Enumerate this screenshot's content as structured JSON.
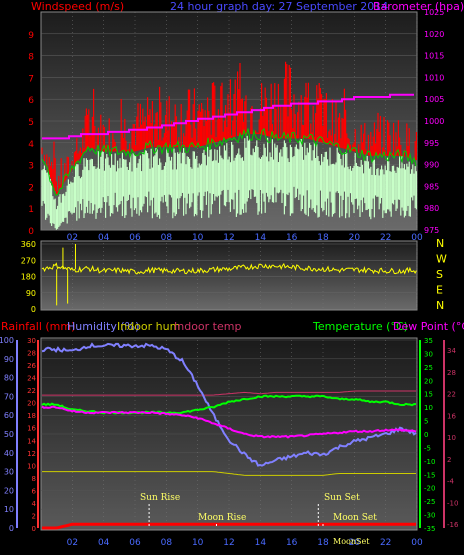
{
  "header": {
    "left_label": "Windspeed (m/s)",
    "center_label": "24 hour graph day:  27 September 2014",
    "right_label": "Barometer (hpa)"
  },
  "wind_panel": {
    "left_ticks": [
      "0",
      "1",
      "2",
      "3",
      "4",
      "5",
      "6",
      "7",
      "8",
      "9"
    ],
    "right_ticks": [
      "975",
      "980",
      "985",
      "990",
      "995",
      "1000",
      "1005",
      "1010",
      "1015",
      "1020",
      "1025"
    ]
  },
  "direction_panel": {
    "left_ticks": [
      "0",
      "90",
      "180",
      "270",
      "360"
    ],
    "compass": [
      "N",
      "W",
      "S",
      "E",
      "N"
    ]
  },
  "hours": [
    "02",
    "04",
    "06",
    "08",
    "10",
    "12",
    "14",
    "16",
    "18",
    "20",
    "22",
    "00"
  ],
  "temp_panel": {
    "labels": {
      "rainfall": "Rainfall (mm)",
      "humidity": "Humidity (%)",
      "indoor_hum": "Indoor hum",
      "indoor_temp": "Indoor temp",
      "temperature": "Temperature (°C)",
      "dew_point": "Dew Point (°C)"
    },
    "humidity_ticks": [
      "0",
      "10",
      "20",
      "30",
      "40",
      "50",
      "60",
      "70",
      "80",
      "90",
      "100"
    ],
    "rain_ticks": [
      "0",
      "2",
      "4",
      "6",
      "8",
      "10",
      "12",
      "14",
      "16",
      "18",
      "20",
      "22",
      "24",
      "26",
      "28",
      "30"
    ],
    "temp_ticks": [
      "-35",
      "-30",
      "-25",
      "-20",
      "-15",
      "-10",
      "-5",
      "0",
      "5",
      "10",
      "15",
      "20",
      "25",
      "30",
      "35"
    ],
    "indoor_ticks": [
      "-16",
      "-10",
      "-4",
      "2",
      "10",
      "16",
      "22",
      "28",
      "34"
    ],
    "events": {
      "sun_rise": "Sun Rise",
      "sun_set": "Sun Set",
      "moon_rise": "Moon Rise",
      "moon_set": "Moon Set",
      "moon_set_small": "MoonSet"
    }
  },
  "colors": {
    "wind_gust": "#ff0000",
    "wind_avg": "#c8ffc8",
    "wind_trend": "#00cc00",
    "barometer": "#ff00ff",
    "direction": "#ffff00",
    "humidity": "#8080ff",
    "temperature": "#00ff00",
    "dew_point": "#ff00ff",
    "indoor_hum": "#cccc00",
    "indoor_temp": "#cc3366",
    "rain": "#ff0000"
  },
  "chart_data": [
    {
      "type": "area",
      "x_hours": [
        0,
        1,
        2,
        3,
        4,
        5,
        6,
        7,
        8,
        9,
        10,
        11,
        12,
        13,
        14,
        15,
        16,
        17,
        18,
        19,
        20,
        21,
        22,
        23,
        24
      ],
      "series": [
        {
          "name": "gust_max",
          "values": [
            4.8,
            3.2,
            3.6,
            6.0,
            5.4,
            5.6,
            6.0,
            6.2,
            6.4,
            6.6,
            6.6,
            7.0,
            7.4,
            7.2,
            7.0,
            7.6,
            8.0,
            7.2,
            6.8,
            5.8,
            5.2,
            5.0,
            5.4,
            5.2,
            4.6
          ]
        },
        {
          "name": "gust_min",
          "values": [
            3.0,
            1.4,
            2.4,
            3.4,
            3.4,
            3.4,
            3.6,
            3.6,
            3.6,
            3.6,
            3.6,
            4.0,
            4.0,
            4.0,
            4.2,
            4.2,
            4.0,
            4.0,
            3.8,
            3.6,
            3.4,
            3.2,
            3.2,
            3.2,
            3.0
          ]
        },
        {
          "name": "avg_max",
          "values": [
            3.6,
            1.6,
            2.8,
            3.8,
            3.6,
            3.6,
            3.6,
            3.8,
            3.8,
            3.8,
            3.8,
            4.0,
            4.2,
            4.4,
            4.4,
            4.2,
            4.2,
            4.2,
            4.0,
            3.8,
            3.6,
            3.4,
            3.4,
            3.4,
            3.2
          ]
        },
        {
          "name": "avg_min",
          "values": [
            1.8,
            0.0,
            1.2,
            1.6,
            1.6,
            1.8,
            1.6,
            1.8,
            1.6,
            1.8,
            1.8,
            1.8,
            2.0,
            1.8,
            2.0,
            2.0,
            2.0,
            2.0,
            1.8,
            1.8,
            1.8,
            1.6,
            1.6,
            1.6,
            1.6
          ]
        },
        {
          "name": "Barometer",
          "values": [
            995.8,
            995.8,
            996.5,
            997.0,
            997.2,
            997.5,
            998.0,
            998.4,
            999.0,
            999.6,
            1000.3,
            1000.8,
            1001.5,
            1002.0,
            1002.7,
            1003.4,
            1003.8,
            1004.1,
            1004.4,
            1004.7,
            1005.3,
            1005.5,
            1005.7,
            1005.9,
            1006.0
          ]
        }
      ],
      "ylim_left": [
        0,
        10
      ],
      "ylim_right": [
        975,
        1025
      ]
    },
    {
      "type": "line",
      "x_hours": [
        0,
        1,
        2,
        3,
        4,
        5,
        6,
        7,
        8,
        9,
        10,
        11,
        12,
        13,
        14,
        15,
        16,
        17,
        18,
        19,
        20,
        21,
        22,
        23,
        24
      ],
      "series": [
        {
          "name": "direction",
          "values": [
            220,
            240,
            215,
            225,
            210,
            215,
            205,
            215,
            212,
            210,
            212,
            218,
            222,
            230,
            240,
            238,
            232,
            226,
            222,
            215,
            218,
            215,
            212,
            210,
            215
          ]
        }
      ],
      "ylim": [
        0,
        360
      ]
    },
    {
      "type": "line",
      "x_hours": [
        0,
        1,
        2,
        3,
        4,
        5,
        6,
        7,
        8,
        9,
        10,
        11,
        12,
        13,
        14,
        15,
        16,
        17,
        18,
        19,
        20,
        21,
        22,
        23,
        24
      ],
      "series": [
        {
          "name": "Humidity",
          "unit": "%",
          "values": [
            95,
            95,
            94,
            97,
            97,
            97,
            97,
            97,
            95,
            89,
            76,
            60,
            47,
            39,
            33,
            36,
            38,
            40,
            39,
            43,
            46,
            48,
            50,
            53,
            50
          ]
        },
        {
          "name": "Temperature",
          "unit": "°C",
          "values": [
            11,
            11,
            9,
            8.5,
            8,
            8,
            8,
            8,
            8,
            8,
            9,
            10,
            12,
            13,
            14,
            14,
            14,
            14,
            14,
            13,
            13,
            12,
            12,
            11,
            11
          ]
        },
        {
          "name": "Dew Point",
          "unit": "°C",
          "values": [
            10,
            10,
            8.5,
            8,
            8,
            8,
            8,
            8,
            7.5,
            7,
            6,
            4,
            2,
            0,
            -1,
            -1,
            -1,
            -0.5,
            0,
            0.5,
            1,
            1,
            1.5,
            1.5,
            1
          ]
        },
        {
          "name": "Indoor hum",
          "unit": "%",
          "values": [
            30,
            30,
            30,
            30,
            30,
            30,
            30,
            30,
            30,
            30,
            30,
            30,
            29,
            28,
            28,
            28,
            28,
            28,
            28,
            29,
            29,
            29,
            29,
            29,
            29
          ]
        },
        {
          "name": "Indoor temp",
          "unit": "°C",
          "values": [
            14.5,
            14.5,
            14.5,
            14.5,
            14.5,
            14.5,
            14.5,
            14.5,
            14.5,
            14.5,
            14.5,
            14.5,
            15,
            15.5,
            15,
            15.5,
            15.5,
            15.5,
            15.5,
            15.5,
            16,
            16,
            16,
            16,
            16
          ]
        },
        {
          "name": "Rainfall",
          "unit": "mm",
          "values": [
            0,
            0,
            0.6,
            0.6,
            0.6,
            0.6,
            0.6,
            0.6,
            0.6,
            0.6,
            0.6,
            0.6,
            0.6,
            0.6,
            0.6,
            0.6,
            0.6,
            0.6,
            0.6,
            0.6,
            0.6,
            0.6,
            0.6,
            0.6,
            0.6
          ]
        }
      ],
      "ylim_humidity": [
        0,
        100
      ],
      "ylim_temperature": [
        -35,
        35
      ]
    }
  ]
}
